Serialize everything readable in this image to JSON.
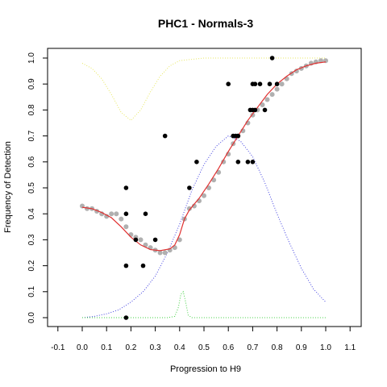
{
  "chart_data": {
    "type": "scatter",
    "title": "PHC1 - Normals-3",
    "xlabel": "Progression to H9",
    "ylabel": "Frequency of Detection",
    "xlim": [
      -0.1,
      1.1
    ],
    "ylim": [
      0,
      1.0
    ],
    "x_ticks": [
      "-0.1",
      "0.0",
      "0.1",
      "0.2",
      "0.3",
      "0.4",
      "0.5",
      "0.6",
      "0.7",
      "0.8",
      "0.9",
      "1.0",
      "1.1"
    ],
    "y_ticks": [
      "0.0",
      "0.1",
      "0.2",
      "0.3",
      "0.4",
      "0.5",
      "0.6",
      "0.7",
      "0.8",
      "0.9",
      "1.0"
    ],
    "grid": false,
    "series": [
      {
        "kind": "points",
        "color": "#000000",
        "values": [
          [
            0.18,
            0.5
          ],
          [
            0.18,
            0.4
          ],
          [
            0.18,
            0.2
          ],
          [
            0.18,
            0.0
          ],
          [
            0.22,
            0.3
          ],
          [
            0.25,
            0.2
          ],
          [
            0.26,
            0.4
          ],
          [
            0.3,
            0.3
          ],
          [
            0.34,
            0.7
          ],
          [
            0.44,
            0.5
          ],
          [
            0.47,
            0.6
          ],
          [
            0.6,
            0.9
          ],
          [
            0.62,
            0.7
          ],
          [
            0.63,
            0.7
          ],
          [
            0.64,
            0.6
          ],
          [
            0.64,
            0.7
          ],
          [
            0.68,
            0.6
          ],
          [
            0.69,
            0.8
          ],
          [
            0.7,
            0.9
          ],
          [
            0.7,
            0.8
          ],
          [
            0.7,
            0.6
          ],
          [
            0.71,
            0.9
          ],
          [
            0.71,
            0.8
          ],
          [
            0.73,
            0.9
          ],
          [
            0.75,
            0.8
          ],
          [
            0.77,
            0.9
          ],
          [
            0.78,
            1.0
          ],
          [
            0.8,
            0.9
          ]
        ]
      },
      {
        "kind": "smoothed-points",
        "color": "#b0b0b0",
        "values": [
          [
            0.0,
            0.43
          ],
          [
            0.02,
            0.42
          ],
          [
            0.04,
            0.42
          ],
          [
            0.06,
            0.41
          ],
          [
            0.08,
            0.4
          ],
          [
            0.1,
            0.39
          ],
          [
            0.12,
            0.4
          ],
          [
            0.14,
            0.4
          ],
          [
            0.16,
            0.38
          ],
          [
            0.18,
            0.35
          ],
          [
            0.2,
            0.32
          ],
          [
            0.22,
            0.31
          ],
          [
            0.24,
            0.3
          ],
          [
            0.26,
            0.28
          ],
          [
            0.28,
            0.27
          ],
          [
            0.3,
            0.26
          ],
          [
            0.32,
            0.25
          ],
          [
            0.34,
            0.25
          ],
          [
            0.36,
            0.26
          ],
          [
            0.38,
            0.27
          ],
          [
            0.4,
            0.3
          ],
          [
            0.42,
            0.38
          ],
          [
            0.44,
            0.42
          ],
          [
            0.46,
            0.43
          ],
          [
            0.48,
            0.45
          ],
          [
            0.5,
            0.47
          ],
          [
            0.52,
            0.5
          ],
          [
            0.54,
            0.53
          ],
          [
            0.56,
            0.56
          ],
          [
            0.58,
            0.6
          ],
          [
            0.6,
            0.63
          ],
          [
            0.62,
            0.67
          ],
          [
            0.64,
            0.7
          ],
          [
            0.66,
            0.72
          ],
          [
            0.68,
            0.75
          ],
          [
            0.7,
            0.78
          ],
          [
            0.72,
            0.8
          ],
          [
            0.74,
            0.82
          ],
          [
            0.76,
            0.84
          ],
          [
            0.78,
            0.86
          ],
          [
            0.8,
            0.88
          ],
          [
            0.82,
            0.9
          ],
          [
            0.84,
            0.92
          ],
          [
            0.86,
            0.94
          ],
          [
            0.88,
            0.95
          ],
          [
            0.9,
            0.96
          ],
          [
            0.92,
            0.97
          ],
          [
            0.94,
            0.98
          ],
          [
            0.96,
            0.985
          ],
          [
            0.98,
            0.99
          ],
          [
            1.0,
            0.99
          ]
        ]
      },
      {
        "kind": "line",
        "color": "#e03030",
        "values": [
          [
            0.0,
            0.425
          ],
          [
            0.04,
            0.42
          ],
          [
            0.08,
            0.405
          ],
          [
            0.12,
            0.385
          ],
          [
            0.16,
            0.35
          ],
          [
            0.2,
            0.31
          ],
          [
            0.24,
            0.28
          ],
          [
            0.28,
            0.262
          ],
          [
            0.32,
            0.258
          ],
          [
            0.36,
            0.265
          ],
          [
            0.38,
            0.28
          ],
          [
            0.4,
            0.32
          ],
          [
            0.42,
            0.38
          ],
          [
            0.44,
            0.415
          ],
          [
            0.48,
            0.46
          ],
          [
            0.52,
            0.515
          ],
          [
            0.56,
            0.575
          ],
          [
            0.6,
            0.64
          ],
          [
            0.64,
            0.7
          ],
          [
            0.68,
            0.76
          ],
          [
            0.72,
            0.81
          ],
          [
            0.76,
            0.86
          ],
          [
            0.8,
            0.9
          ],
          [
            0.84,
            0.93
          ],
          [
            0.88,
            0.955
          ],
          [
            0.92,
            0.97
          ],
          [
            0.96,
            0.98
          ],
          [
            1.0,
            0.985
          ]
        ]
      },
      {
        "kind": "dotted-line",
        "color": "#e8e860",
        "values": [
          [
            0.0,
            0.98
          ],
          [
            0.04,
            0.96
          ],
          [
            0.08,
            0.92
          ],
          [
            0.12,
            0.86
          ],
          [
            0.16,
            0.79
          ],
          [
            0.2,
            0.76
          ],
          [
            0.24,
            0.8
          ],
          [
            0.28,
            0.87
          ],
          [
            0.32,
            0.93
          ],
          [
            0.36,
            0.97
          ],
          [
            0.4,
            0.99
          ],
          [
            0.5,
            1.0
          ],
          [
            0.6,
            1.0
          ],
          [
            0.7,
            1.0
          ],
          [
            0.8,
            1.0
          ],
          [
            0.9,
            1.0
          ],
          [
            1.0,
            1.0
          ]
        ]
      },
      {
        "kind": "dotted-line",
        "color": "#4040e0",
        "values": [
          [
            0.0,
            0.0
          ],
          [
            0.05,
            0.005
          ],
          [
            0.1,
            0.015
          ],
          [
            0.15,
            0.03
          ],
          [
            0.2,
            0.06
          ],
          [
            0.25,
            0.1
          ],
          [
            0.3,
            0.16
          ],
          [
            0.35,
            0.25
          ],
          [
            0.4,
            0.36
          ],
          [
            0.45,
            0.49
          ],
          [
            0.5,
            0.59
          ],
          [
            0.55,
            0.66
          ],
          [
            0.6,
            0.7
          ],
          [
            0.65,
            0.68
          ],
          [
            0.7,
            0.62
          ],
          [
            0.75,
            0.52
          ],
          [
            0.8,
            0.4
          ],
          [
            0.85,
            0.29
          ],
          [
            0.9,
            0.19
          ],
          [
            0.95,
            0.11
          ],
          [
            1.0,
            0.06
          ]
        ]
      },
      {
        "kind": "dotted-line",
        "color": "#40d040",
        "values": [
          [
            0.0,
            0.0
          ],
          [
            0.35,
            0.0
          ],
          [
            0.38,
            0.005
          ],
          [
            0.395,
            0.04
          ],
          [
            0.405,
            0.09
          ],
          [
            0.415,
            0.1
          ],
          [
            0.425,
            0.06
          ],
          [
            0.435,
            0.01
          ],
          [
            0.45,
            0.0
          ],
          [
            0.6,
            0.0
          ],
          [
            0.8,
            0.0
          ],
          [
            1.0,
            0.0
          ]
        ]
      }
    ]
  }
}
